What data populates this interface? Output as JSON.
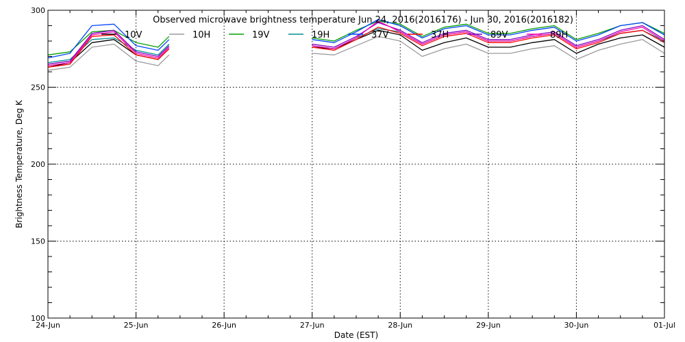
{
  "chart_data": {
    "type": "line",
    "title": "Observed microwave brightness temperature Jun 24, 2016(2016176) - Jun 30, 2016(2016182)",
    "xlabel": "Date (EST)",
    "ylabel": "Brightness Temperature, Deg K",
    "xlim": [
      "2016-06-24",
      "2016-07-01"
    ],
    "ylim": [
      100,
      300
    ],
    "x_ticks": [
      "24-Jun",
      "25-Jun",
      "26-Jun",
      "27-Jun",
      "28-Jun",
      "29-Jun",
      "30-Jun",
      "01-Jul"
    ],
    "y_ticks": [
      100,
      150,
      200,
      250,
      300
    ],
    "grid": true,
    "legend_placement": "top",
    "series": [
      {
        "name": "10V",
        "color": "#000000"
      },
      {
        "name": "10H",
        "color": "#9a9a9a"
      },
      {
        "name": "19V",
        "color": "#00a000"
      },
      {
        "name": "19H",
        "color": "#009090"
      },
      {
        "name": "37V",
        "color": "#0044ff"
      },
      {
        "name": "37H",
        "color": "#ff0000"
      },
      {
        "name": "89V",
        "color": "#8000c0"
      },
      {
        "name": "89H",
        "color": "#ff00aa"
      }
    ],
    "x": [
      "2016-06-24 00:00",
      "2016-06-24 06:00",
      "2016-06-24 12:00",
      "2016-06-24 18:00",
      "2016-06-25 00:00",
      "2016-06-25 06:00",
      "2016-06-25 09:00",
      "2016-06-26 18:00",
      "2016-06-27 00:00",
      "2016-06-27 06:00",
      "2016-06-27 12:00",
      "2016-06-27 18:00",
      "2016-06-28 00:00",
      "2016-06-28 06:00",
      "2016-06-28 12:00",
      "2016-06-28 18:00",
      "2016-06-29 00:00",
      "2016-06-29 06:00",
      "2016-06-29 12:00",
      "2016-06-29 18:00",
      "2016-06-30 00:00",
      "2016-06-30 06:00",
      "2016-06-30 12:00",
      "2016-06-30 18:00",
      "2016-07-01 00:00"
    ],
    "values": {
      "10V": [
        263,
        266,
        279,
        281,
        271,
        268,
        275,
        null,
        276,
        275,
        281,
        287,
        284,
        274,
        279,
        282,
        276,
        276,
        279,
        281,
        272,
        278,
        282,
        284,
        276
      ],
      "10H": [
        261,
        263,
        276,
        278,
        267,
        264,
        271,
        null,
        272,
        271,
        277,
        283,
        280,
        270,
        275,
        278,
        272,
        272,
        275,
        277,
        268,
        274,
        278,
        281,
        272
      ],
      "19V": [
        271,
        273,
        286,
        287,
        279,
        276,
        283,
        null,
        282,
        280,
        287,
        293,
        291,
        283,
        289,
        291,
        285,
        285,
        288,
        290,
        281,
        285,
        290,
        292,
        285
      ],
      "19H": [
        266,
        268,
        281,
        282,
        274,
        271,
        278,
        null,
        277,
        275,
        282,
        288,
        286,
        278,
        284,
        286,
        280,
        280,
        283,
        285,
        276,
        280,
        285,
        287,
        280
      ],
      "37V": [
        269,
        272,
        290,
        291,
        277,
        274,
        281,
        null,
        281,
        279,
        286,
        294,
        290,
        282,
        288,
        290,
        284,
        284,
        287,
        289,
        280,
        284,
        290,
        292,
        284
      ],
      "37H": [
        263,
        265,
        283,
        284,
        271,
        268,
        275,
        null,
        276,
        274,
        281,
        289,
        285,
        277,
        283,
        285,
        279,
        279,
        282,
        284,
        275,
        279,
        285,
        287,
        279
      ],
      "89V": [
        265,
        267,
        285,
        287,
        273,
        270,
        277,
        null,
        278,
        276,
        283,
        292,
        287,
        279,
        285,
        287,
        281,
        281,
        284,
        286,
        277,
        281,
        287,
        290,
        281
      ],
      "89H": [
        264,
        266,
        284,
        286,
        272,
        269,
        276,
        null,
        277,
        275,
        282,
        293,
        286,
        278,
        284,
        286,
        280,
        280,
        283,
        285,
        276,
        280,
        286,
        289,
        280
      ]
    }
  }
}
